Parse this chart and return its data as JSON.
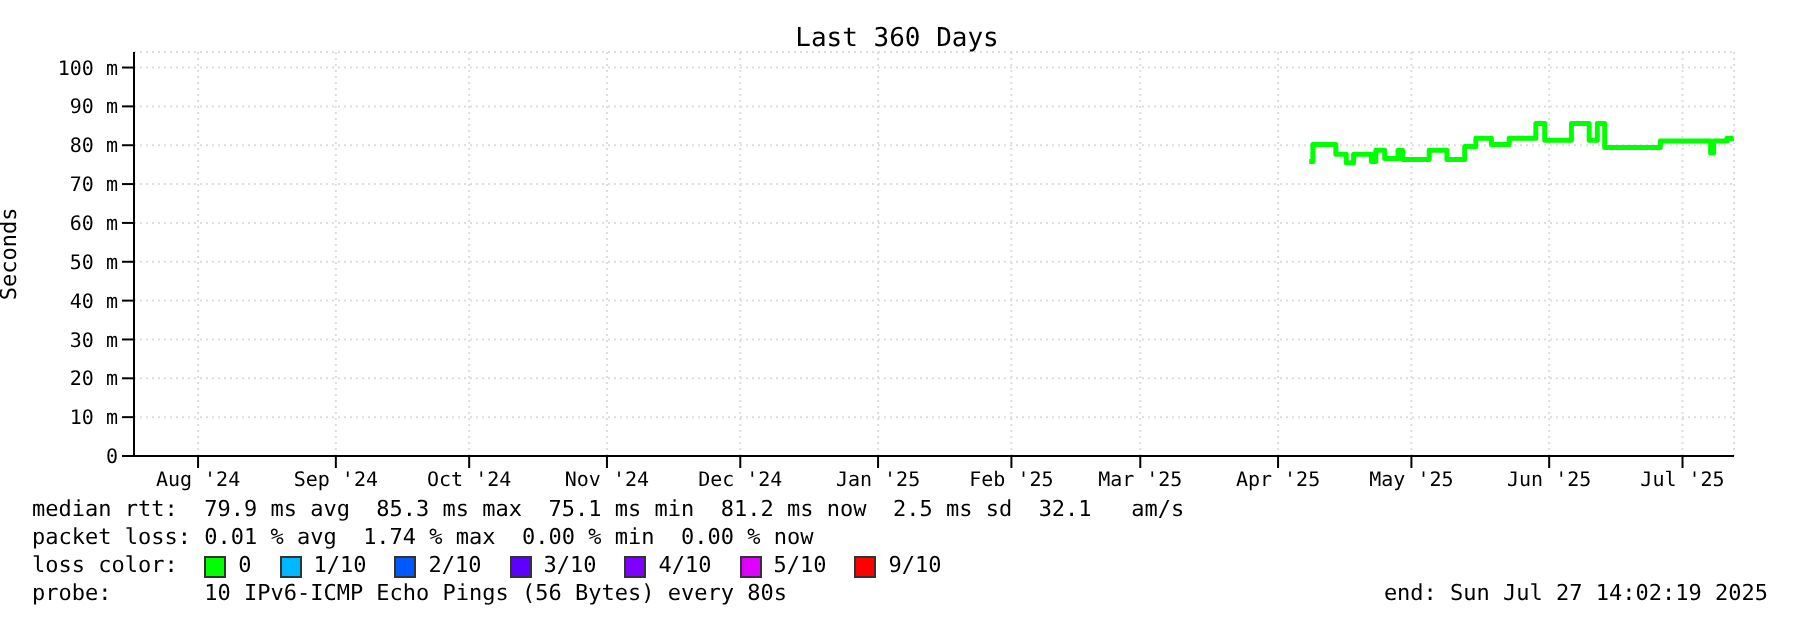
{
  "chart_data": {
    "type": "step",
    "title": "Last 360 Days",
    "ylabel": "Seconds",
    "x": [
      "2025-04-23T00:00",
      "2025-04-23T20:00",
      "2025-04-27T20:00",
      "2025-04-29T00:00",
      "2025-05-01T08:00",
      "2025-05-03T00:00",
      "2025-05-06T00:00",
      "2025-05-07T00:00",
      "2025-05-08T00:00",
      "2025-05-09T20:00",
      "2025-05-10T00:00",
      "2025-05-12T12:00",
      "2025-05-13T00:00",
      "2025-05-14T00:00",
      "2025-05-19T00:00",
      "2025-05-20T00:00",
      "2025-05-23T20:00",
      "2025-05-24T00:00",
      "2025-05-27T00:00",
      "2025-05-28T00:00",
      "2025-05-30T12:00",
      "2025-06-02T00:00",
      "2025-06-03T00:00",
      "2025-06-05T00:00",
      "2025-06-07T00:00",
      "2025-06-11T00:00",
      "2025-06-13T00:00",
      "2025-06-14T12:00",
      "2025-06-15T00:00",
      "2025-06-20T00:00",
      "2025-06-21T00:00",
      "2025-06-24T00:00",
      "2025-06-25T00:00",
      "2025-06-26T20:00",
      "2025-06-28T00:00",
      "2025-06-28T12:00",
      "2025-07-10T00:00",
      "2025-07-11T00:00",
      "2025-07-22T00:00",
      "2025-07-22T08:00",
      "2025-07-23T00:00",
      "2025-07-26T00:00",
      "2025-07-27T00:00"
    ],
    "series": [
      {
        "name": "0",
        "color": "#00ff00",
        "values": [
          75.8,
          80.2,
          80.2,
          77.7,
          75.5,
          77.7,
          77.7,
          75.8,
          78.7,
          78.7,
          76.6,
          76.6,
          78.7,
          76.3,
          76.3,
          78.7,
          78.7,
          76.3,
          76.3,
          79.7,
          81.8,
          81.8,
          80.2,
          80.2,
          81.8,
          81.8,
          85.6,
          85.6,
          81.3,
          81.3,
          85.6,
          85.6,
          81.3,
          85.6,
          85.6,
          79.4,
          79.4,
          81.1,
          81.1,
          78,
          81.1,
          81.8,
          81.1
        ]
      },
      {
        "name": "1/10",
        "color": "#00b8ff",
        "values": [
          null,
          null,
          null,
          null,
          null,
          null,
          null,
          null,
          null,
          null,
          null,
          null,
          null,
          null,
          null,
          null,
          null,
          null,
          null,
          null,
          null,
          null,
          null,
          null,
          null,
          null,
          null,
          null,
          null,
          null,
          null,
          null,
          null,
          null,
          null,
          null,
          null,
          null,
          null,
          null,
          null,
          null,
          null
        ]
      },
      {
        "name": "2/10",
        "color": "#0059ff",
        "values": [
          null,
          null,
          null,
          null,
          null,
          null,
          null,
          null,
          null,
          null,
          null,
          null,
          null,
          null,
          null,
          null,
          null,
          null,
          null,
          null,
          null,
          null,
          null,
          null,
          null,
          null,
          null,
          null,
          null,
          null,
          null,
          null,
          null,
          null,
          null,
          null,
          null,
          null,
          null,
          null,
          null,
          null,
          null
        ]
      },
      {
        "name": "3/10",
        "color": "#5e00ff",
        "values": [
          null,
          null,
          null,
          null,
          null,
          null,
          null,
          null,
          null,
          null,
          null,
          null,
          null,
          null,
          null,
          null,
          null,
          null,
          null,
          null,
          null,
          null,
          null,
          null,
          null,
          null,
          null,
          null,
          null,
          null,
          null,
          null,
          null,
          null,
          null,
          null,
          null,
          null,
          null,
          null,
          null,
          null,
          null
        ]
      },
      {
        "name": "4/10",
        "color": "#7e00ff",
        "values": [
          null,
          null,
          null,
          null,
          null,
          null,
          null,
          null,
          null,
          null,
          null,
          null,
          null,
          null,
          null,
          null,
          null,
          null,
          null,
          null,
          null,
          null,
          null,
          null,
          null,
          null,
          null,
          null,
          null,
          null,
          null,
          null,
          null,
          null,
          null,
          null,
          null,
          null,
          null,
          null,
          null,
          null,
          null
        ]
      },
      {
        "name": "5/10",
        "color": "#dd00ff",
        "values": [
          null,
          null,
          null,
          null,
          null,
          null,
          null,
          null,
          null,
          null,
          null,
          null,
          null,
          null,
          null,
          null,
          null,
          null,
          null,
          null,
          null,
          null,
          null,
          null,
          null,
          null,
          null,
          null,
          null,
          null,
          null,
          null,
          null,
          null,
          null,
          null,
          null,
          null,
          null,
          null,
          null,
          null,
          null
        ]
      },
      {
        "name": "9/10",
        "color": "#ff0000",
        "values": [
          null,
          null,
          null,
          null,
          null,
          null,
          null,
          null,
          null,
          null,
          null,
          null,
          null,
          null,
          null,
          null,
          null,
          null,
          null,
          null,
          null,
          null,
          null,
          null,
          null,
          null,
          null,
          null,
          null,
          null,
          null,
          null,
          null,
          null,
          null,
          null,
          null,
          null,
          null,
          null,
          null,
          null,
          null
        ]
      }
    ],
    "xlim": [
      "2024-08-01T14:02",
      "2025-07-27T14:02"
    ],
    "xticks": [
      {
        "value": "2024-08-16",
        "label": "Aug '24"
      },
      {
        "value": "2024-09-16",
        "label": "Sep '24"
      },
      {
        "value": "2024-10-16",
        "label": "Oct '24"
      },
      {
        "value": "2024-11-16",
        "label": "Nov '24"
      },
      {
        "value": "2024-12-16",
        "label": "Dec '24"
      },
      {
        "value": "2025-01-16",
        "label": "Jan '25"
      },
      {
        "value": "2025-02-15",
        "label": "Feb '25"
      },
      {
        "value": "2025-03-16",
        "label": "Mar '25"
      },
      {
        "value": "2025-04-16",
        "label": "Apr '25"
      },
      {
        "value": "2025-05-16",
        "label": "May '25"
      },
      {
        "value": "2025-06-16",
        "label": "Jun '25"
      },
      {
        "value": "2025-07-16",
        "label": "Jul '25"
      }
    ],
    "ylim": [
      0,
      104
    ],
    "yticks": [
      0,
      {
        "value": 10,
        "label": "10 m"
      },
      {
        "value": 20,
        "label": "20 m"
      },
      {
        "value": 30,
        "label": "30 m"
      },
      {
        "value": 40,
        "label": "40 m"
      },
      {
        "value": 50,
        "label": "50 m"
      },
      {
        "value": 60,
        "label": "60 m"
      },
      {
        "value": 70,
        "label": "70 m"
      },
      {
        "value": 80,
        "label": "80 m"
      },
      {
        "value": 90,
        "label": "90 m"
      },
      {
        "value": 100,
        "label": "100 m"
      }
    ],
    "grid": true,
    "marker": "none",
    "line_style": "solid",
    "legend": "bottom",
    "legend_title": "loss color:",
    "annotations": [
      "median rtt:  79.9 ms avg  85.3 ms max  75.1 ms min  81.2 ms now  2.5 ms sd  32.1   am/s",
      "packet loss: 0.01 % avg  1.74 % max  0.00 % min  0.00 % now",
      "probe:       10 IPv6-ICMP Echo Pings (56 Bytes) every 80s",
      "end: Sun Jul 27 14:02:19 2025"
    ]
  }
}
